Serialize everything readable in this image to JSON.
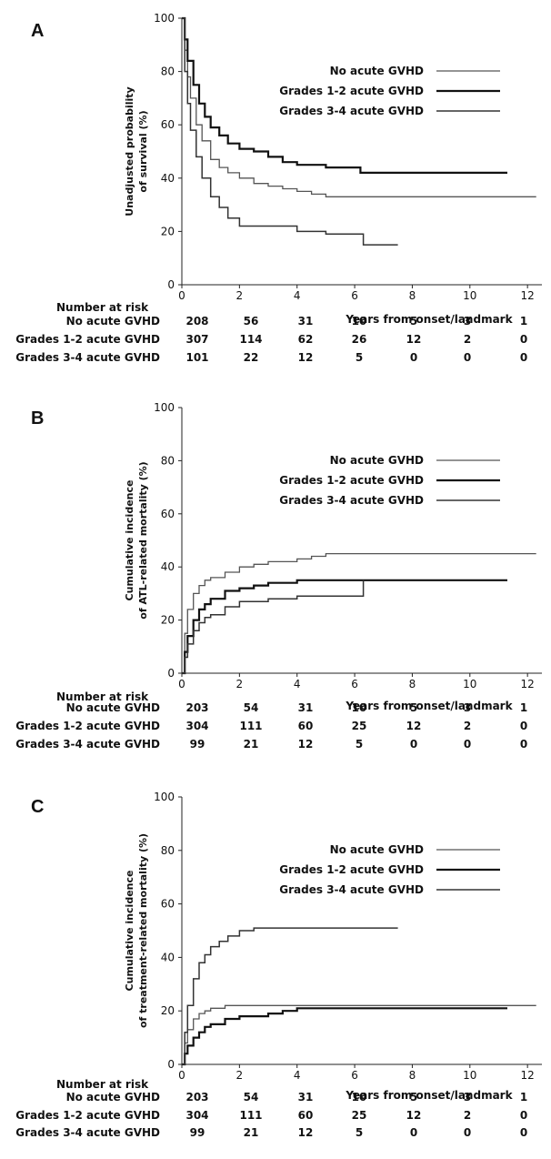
{
  "chart_data": [
    {
      "panel": "A",
      "type": "line",
      "xlabel": "Years from onset/landmark",
      "ylabel_lines": [
        "Unadjusted probability",
        "of survival (%)"
      ],
      "xlim": [
        0,
        12.5
      ],
      "ylim": [
        0,
        100
      ],
      "xticks": [
        0,
        2,
        4,
        6,
        8,
        10,
        12
      ],
      "yticks": [
        0,
        20,
        40,
        60,
        80,
        100
      ],
      "legend": [
        "No acute GVHD",
        "Grades 1-2 acute GVHD",
        "Grades 3-4 acute GVHD"
      ],
      "series": [
        {
          "name": "No acute GVHD",
          "color": "#555555",
          "width": 1.3,
          "x": [
            0,
            0.1,
            0.2,
            0.3,
            0.5,
            0.7,
            1.0,
            1.3,
            1.6,
            2.0,
            2.5,
            3.0,
            3.5,
            4.0,
            4.5,
            5.0,
            6.0,
            8.0,
            10.0,
            12.3
          ],
          "y": [
            100,
            88,
            78,
            70,
            60,
            54,
            47,
            44,
            42,
            40,
            38,
            37,
            36,
            35,
            34,
            33,
            33,
            33,
            33,
            33
          ]
        },
        {
          "name": "Grades 1-2 acute GVHD",
          "color": "#111111",
          "width": 2.2,
          "x": [
            0,
            0.1,
            0.2,
            0.4,
            0.6,
            0.8,
            1.0,
            1.3,
            1.6,
            2.0,
            2.5,
            3.0,
            3.5,
            4.0,
            5.0,
            6.2,
            8.0,
            10.0,
            11.3
          ],
          "y": [
            100,
            92,
            84,
            75,
            68,
            63,
            59,
            56,
            53,
            51,
            50,
            48,
            46,
            45,
            44,
            42,
            42,
            42,
            42
          ]
        },
        {
          "name": "Grades 3-4 acute GVHD",
          "color": "#333333",
          "width": 1.5,
          "x": [
            0,
            0.1,
            0.2,
            0.3,
            0.5,
            0.7,
            1.0,
            1.3,
            1.6,
            2.0,
            2.5,
            3.0,
            4.0,
            5.0,
            6.2,
            6.3,
            7.5
          ],
          "y": [
            100,
            80,
            68,
            58,
            48,
            40,
            33,
            29,
            25,
            22,
            22,
            22,
            20,
            19,
            19,
            15,
            15
          ]
        }
      ],
      "risk_table": {
        "title": "Number at risk",
        "rows": [
          {
            "label": "No acute GVHD",
            "values": [
              "208",
              "56",
              "31",
              "10",
              "5",
              "3",
              "1"
            ]
          },
          {
            "label": "Grades 1-2 acute GVHD",
            "values": [
              "307",
              "114",
              "62",
              "26",
              "12",
              "2",
              "0"
            ]
          },
          {
            "label": "Grades 3-4 acute GVHD",
            "values": [
              "101",
              "22",
              "12",
              "5",
              "0",
              "0",
              "0"
            ]
          }
        ]
      }
    },
    {
      "panel": "B",
      "type": "line",
      "xlabel": "Years from onset/landmark",
      "ylabel_lines": [
        "Cumulative incidence",
        "of ATL-related mortality (%)"
      ],
      "xlim": [
        0,
        12.5
      ],
      "ylim": [
        0,
        100
      ],
      "xticks": [
        0,
        2,
        4,
        6,
        8,
        10,
        12
      ],
      "yticks": [
        0,
        20,
        40,
        60,
        80,
        100
      ],
      "legend": [
        "No acute GVHD",
        "Grades 1-2 acute GVHD",
        "Grades 3-4 acute GVHD"
      ],
      "series": [
        {
          "name": "No acute GVHD",
          "color": "#555555",
          "width": 1.3,
          "x": [
            0,
            0.1,
            0.2,
            0.4,
            0.6,
            0.8,
            1.0,
            1.5,
            2.0,
            2.5,
            3.0,
            4.0,
            4.5,
            5.0,
            8.0,
            12.3
          ],
          "y": [
            0,
            15,
            24,
            30,
            33,
            35,
            36,
            38,
            40,
            41,
            42,
            43,
            44,
            45,
            45,
            45
          ]
        },
        {
          "name": "Grades 1-2 acute GVHD",
          "color": "#111111",
          "width": 2.2,
          "x": [
            0,
            0.1,
            0.2,
            0.4,
            0.6,
            0.8,
            1.0,
            1.5,
            2.0,
            2.5,
            3.0,
            4.0,
            6.0,
            8.0,
            11.3
          ],
          "y": [
            0,
            8,
            14,
            20,
            24,
            26,
            28,
            31,
            32,
            33,
            34,
            35,
            35,
            35,
            35
          ]
        },
        {
          "name": "Grades 3-4 acute GVHD",
          "color": "#333333",
          "width": 1.5,
          "x": [
            0,
            0.1,
            0.2,
            0.4,
            0.6,
            0.8,
            1.0,
            1.5,
            2.0,
            3.0,
            4.0,
            6.2,
            6.3
          ],
          "y": [
            0,
            6,
            11,
            16,
            19,
            21,
            22,
            25,
            27,
            28,
            29,
            29,
            35
          ]
        }
      ],
      "risk_table": {
        "title": "Number at risk",
        "rows": [
          {
            "label": "No acute GVHD",
            "values": [
              "203",
              "54",
              "31",
              "10",
              "5",
              "3",
              "1"
            ]
          },
          {
            "label": "Grades 1-2 acute GVHD",
            "values": [
              "304",
              "111",
              "60",
              "25",
              "12",
              "2",
              "0"
            ]
          },
          {
            "label": "Grades 3-4 acute GVHD",
            "values": [
              "99",
              "21",
              "12",
              "5",
              "0",
              "0",
              "0"
            ]
          }
        ]
      }
    },
    {
      "panel": "C",
      "type": "line",
      "xlabel": "Years from onset/landmark",
      "ylabel_lines": [
        "Cumulative incidence",
        "of treatment-related mortality (%)"
      ],
      "xlim": [
        0,
        12.5
      ],
      "ylim": [
        0,
        100
      ],
      "xticks": [
        0,
        2,
        4,
        6,
        8,
        10,
        12
      ],
      "yticks": [
        0,
        20,
        40,
        60,
        80,
        100
      ],
      "legend": [
        "No acute GVHD",
        "Grades 1-2 acute GVHD",
        "Grades 3-4 acute GVHD"
      ],
      "series": [
        {
          "name": "No acute GVHD",
          "color": "#555555",
          "width": 1.3,
          "x": [
            0,
            0.1,
            0.2,
            0.4,
            0.6,
            0.8,
            1.0,
            1.5,
            2.0,
            3.0,
            4.0,
            8.0,
            12.3
          ],
          "y": [
            0,
            8,
            13,
            17,
            19,
            20,
            21,
            22,
            22,
            22,
            22,
            22,
            22
          ]
        },
        {
          "name": "Grades 1-2 acute GVHD",
          "color": "#111111",
          "width": 2.2,
          "x": [
            0,
            0.1,
            0.2,
            0.4,
            0.6,
            0.8,
            1.0,
            1.5,
            2.0,
            3.0,
            3.5,
            4.0,
            8.0,
            11.3
          ],
          "y": [
            0,
            4,
            7,
            10,
            12,
            14,
            15,
            17,
            18,
            19,
            20,
            21,
            21,
            21
          ]
        },
        {
          "name": "Grades 3-4 acute GVHD",
          "color": "#333333",
          "width": 1.5,
          "x": [
            0,
            0.1,
            0.2,
            0.4,
            0.6,
            0.8,
            1.0,
            1.3,
            1.6,
            2.0,
            2.5,
            4.0,
            7.5
          ],
          "y": [
            0,
            12,
            22,
            32,
            38,
            41,
            44,
            46,
            48,
            50,
            51,
            51,
            51
          ]
        }
      ],
      "risk_table": {
        "title": "Number at risk",
        "rows": [
          {
            "label": "No acute GVHD",
            "values": [
              "203",
              "54",
              "31",
              "10",
              "5",
              "3",
              "1"
            ]
          },
          {
            "label": "Grades 1-2 acute GVHD",
            "values": [
              "304",
              "111",
              "60",
              "25",
              "12",
              "2",
              "0"
            ]
          },
          {
            "label": "Grades 3-4 acute GVHD",
            "values": [
              "99",
              "21",
              "12",
              "5",
              "0",
              "0",
              "0"
            ]
          }
        ]
      }
    }
  ]
}
